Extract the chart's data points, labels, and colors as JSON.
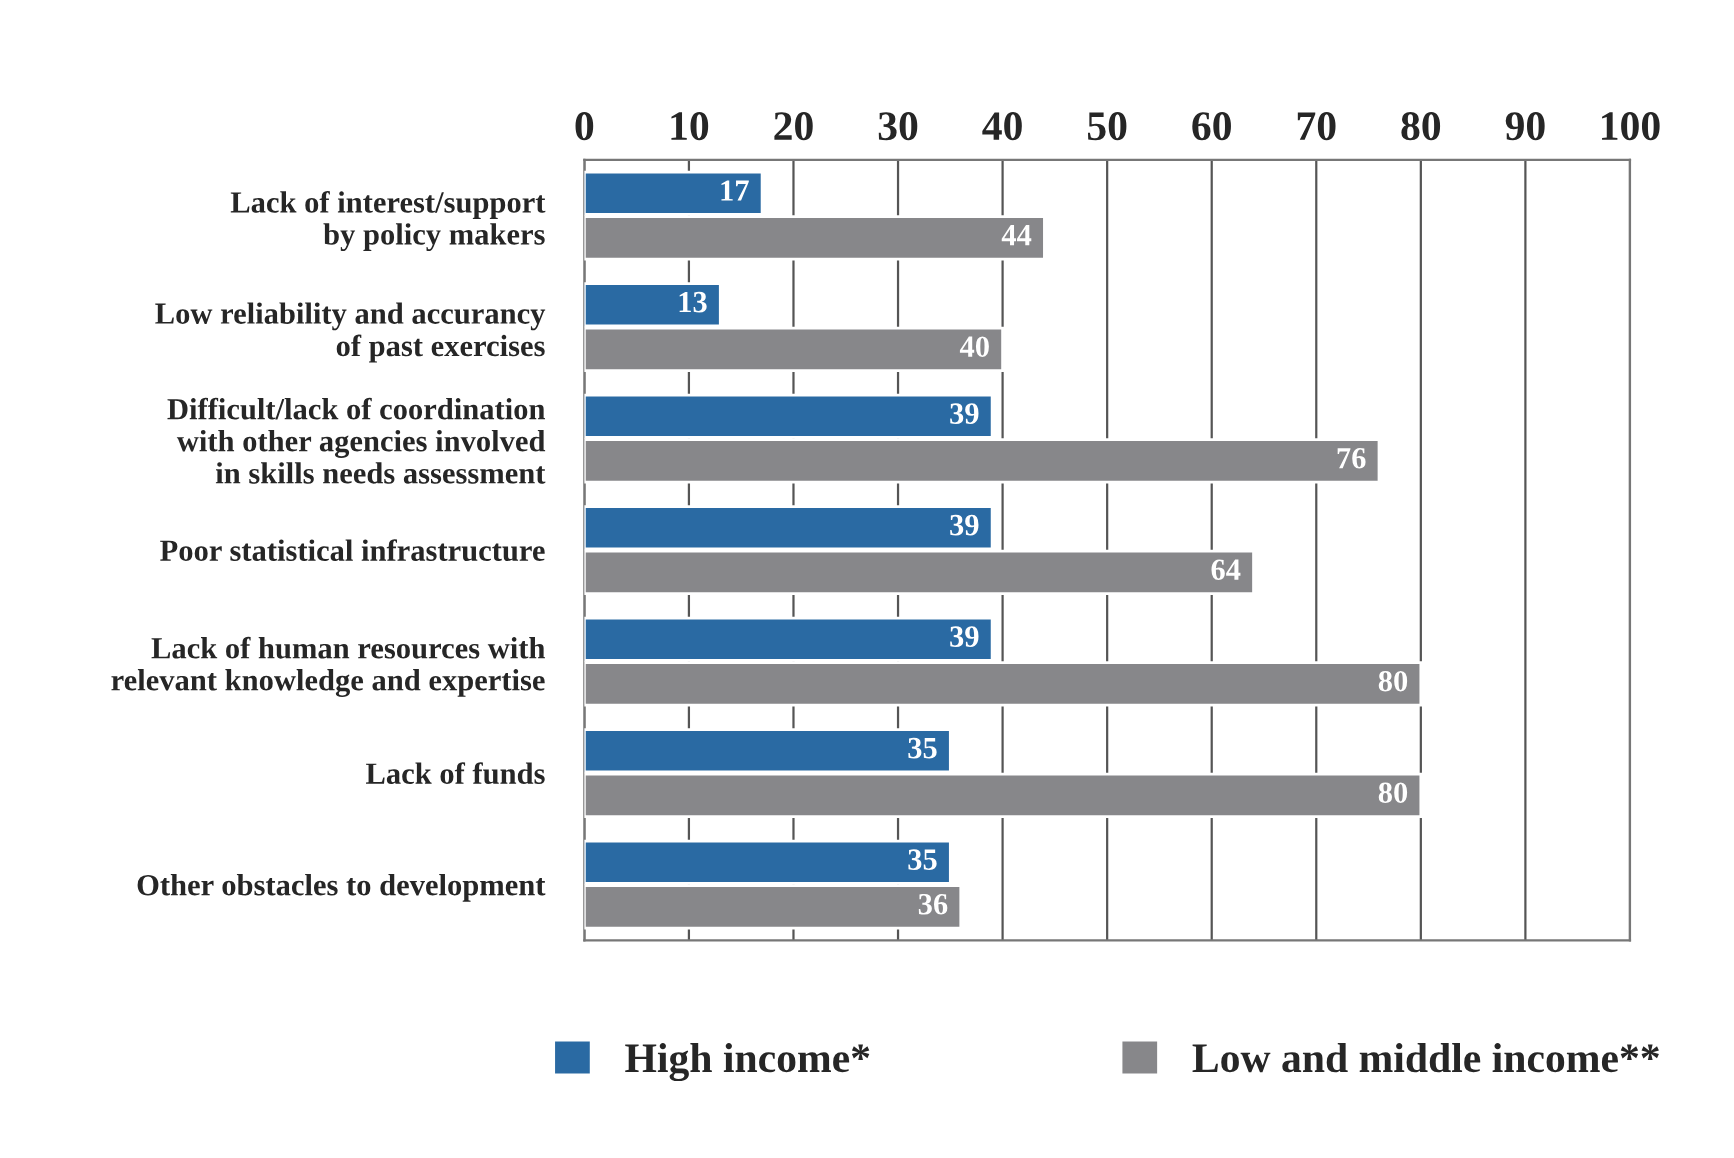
{
  "chart_data": {
    "type": "bar",
    "orientation": "horizontal",
    "categories": [
      "Lack of interest/support\nby policy makers",
      "Low reliability and accurancy\nof past exercises",
      "Difficult/lack of coordination\nwith other agencies involved\nin skills needs assessment",
      "Poor statistical infrastructure",
      "Lack of human resources with\nrelevant knowledge and expertise",
      "Lack of funds",
      "Other obstacles to development"
    ],
    "series": [
      {
        "name": "High income*",
        "color": "#2a6aa3",
        "values": [
          17,
          13,
          39,
          39,
          39,
          35,
          35
        ]
      },
      {
        "name": "Low and middle income**",
        "color": "#87878a",
        "values": [
          44,
          40,
          76,
          64,
          80,
          80,
          36
        ]
      }
    ],
    "xlim": [
      0,
      100
    ],
    "xticks": [
      0,
      10,
      20,
      30,
      40,
      50,
      60,
      70,
      80,
      90,
      100
    ],
    "grid": "x",
    "legend": "bottom",
    "data_labels": true
  }
}
